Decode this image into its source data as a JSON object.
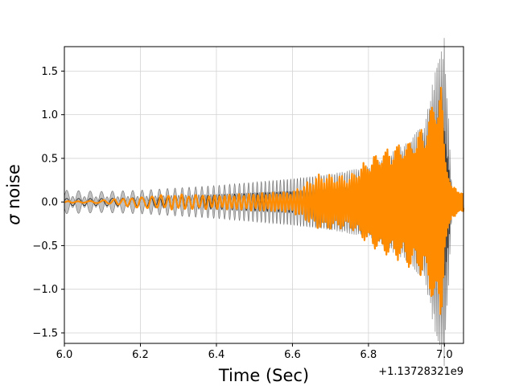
{
  "chart_data": {
    "type": "line",
    "title": "",
    "xlabel": "Time (Sec)",
    "ylabel_symbol": "σ",
    "ylabel_text": " noise",
    "x_offset_label": "+1.13728321e9",
    "xlim": [
      6.0,
      7.05
    ],
    "ylim": [
      -1.62,
      1.78
    ],
    "xticks": [
      6.0,
      6.2,
      6.4,
      6.6,
      6.8,
      7.0
    ],
    "xtick_labels": [
      "6.0",
      "6.2",
      "6.4",
      "6.6",
      "6.8",
      "7.0"
    ],
    "yticks": [
      -1.5,
      -1.0,
      -0.5,
      0.0,
      0.5,
      1.0,
      1.5
    ],
    "ytick_labels": [
      "−1.5",
      "−1.0",
      "−0.5",
      "0.0",
      "0.5",
      "1.0",
      "1.5"
    ],
    "grid": true,
    "legend": "none",
    "colors": {
      "whitened_data": "#ff8c00",
      "model_median": "#2b2b2b",
      "model_band": "#a0a0a0"
    },
    "series": [
      {
        "style": "band",
        "x": [
          6.0,
          6.1,
          6.2,
          6.3,
          6.4,
          6.5,
          6.6,
          6.7,
          6.8,
          6.85,
          6.9,
          6.95,
          6.98,
          7.0,
          7.02,
          7.05
        ],
        "lower": [
          -0.1,
          -0.09,
          -0.1,
          -0.12,
          -0.14,
          -0.17,
          -0.2,
          -0.24,
          -0.3,
          -0.4,
          -0.5,
          -0.7,
          -1.2,
          -1.4,
          -0.1,
          -0.05
        ],
        "upper": [
          0.1,
          0.09,
          0.1,
          0.12,
          0.14,
          0.17,
          0.2,
          0.24,
          0.3,
          0.4,
          0.5,
          0.7,
          1.2,
          1.4,
          0.1,
          0.05
        ]
      },
      {
        "style": "line",
        "x": [
          6.0,
          6.1,
          6.2,
          6.3,
          6.4,
          6.5,
          6.6,
          6.7,
          6.8,
          6.85,
          6.9,
          6.95,
          6.98,
          7.0,
          7.02,
          7.05
        ],
        "amplitude": [
          0.04,
          0.04,
          0.05,
          0.06,
          0.08,
          0.1,
          0.12,
          0.15,
          0.2,
          0.25,
          0.32,
          0.5,
          0.9,
          0.9,
          0.05,
          0.02
        ]
      },
      {
        "style": "line",
        "x": [
          6.0,
          6.05,
          6.1,
          6.15,
          6.2,
          6.3,
          6.4,
          6.5,
          6.6,
          6.67,
          6.75,
          6.82,
          6.88,
          6.92,
          6.95,
          6.97,
          6.99,
          7.0,
          7.02,
          7.05
        ],
        "amplitude": [
          0.01,
          0.01,
          0.02,
          0.04,
          0.07,
          0.09,
          0.08,
          0.1,
          0.12,
          0.32,
          0.3,
          0.58,
          0.68,
          0.78,
          0.9,
          1.2,
          1.62,
          0.6,
          0.18,
          0.12
        ]
      }
    ]
  }
}
